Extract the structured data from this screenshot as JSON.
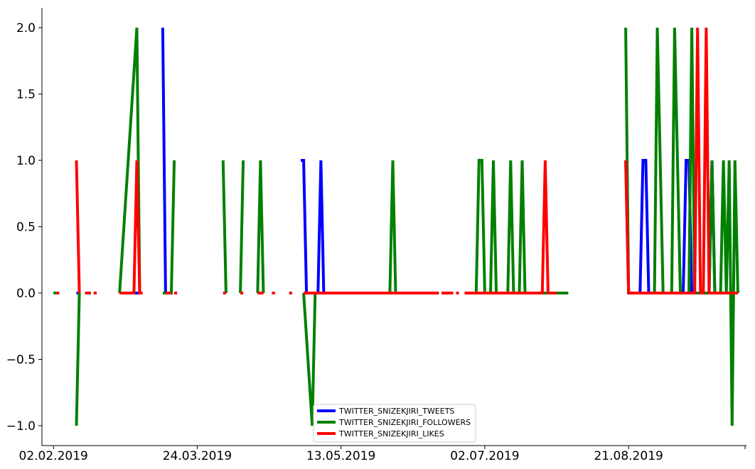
{
  "chart_data": {
    "type": "line",
    "title": "",
    "xlabel": "",
    "ylabel": "",
    "x_range": [
      "2019-01-29",
      "2019-10-01"
    ],
    "ylim": [
      -1.15,
      2.15
    ],
    "y_ticks": [
      -1.0,
      -0.5,
      0.0,
      0.5,
      1.0,
      1.5,
      2.0
    ],
    "y_tick_labels": [
      "−1.0",
      "−0.5",
      "0.0",
      "0.5",
      "1.0",
      "1.5",
      "2.0"
    ],
    "x_ticks": [
      "2019-02-02",
      "2019-03-24",
      "2019-05-13",
      "2019-07-02",
      "2019-08-21"
    ],
    "x_tick_labels": [
      "02.02.2019",
      "24.03.2019",
      "13.05.2019",
      "02.07.2019",
      "21.08.2019"
    ],
    "grid": false,
    "legend_position": "bottom-center",
    "series": [
      {
        "name": "TWITTER_SNIZEKJIRI_TWEETS",
        "color": "#0000ff",
        "segments": [
          [
            [
              "2019-02-10",
              0
            ],
            [
              "2019-02-11",
              0
            ]
          ],
          [
            [
              "2019-02-13",
              0
            ],
            [
              "2019-02-15",
              0
            ]
          ],
          [
            [
              "2019-02-16",
              0
            ],
            [
              "2019-02-17",
              0
            ]
          ],
          [
            [
              "2019-02-25",
              0
            ],
            [
              "2019-03-04",
              0
            ]
          ],
          [
            [
              "2019-03-12",
              2
            ],
            [
              "2019-03-13",
              0
            ],
            [
              "2019-03-15",
              0
            ]
          ],
          [
            [
              "2019-03-16",
              0
            ],
            [
              "2019-03-17",
              0
            ]
          ],
          [
            [
              "2019-04-02",
              0
            ],
            [
              "2019-04-03",
              0
            ]
          ],
          [
            [
              "2019-04-08",
              0
            ],
            [
              "2019-04-09",
              0
            ]
          ],
          [
            [
              "2019-04-14",
              0
            ],
            [
              "2019-04-15",
              0
            ]
          ],
          [
            [
              "2019-04-19",
              0
            ],
            [
              "2019-04-20",
              0
            ]
          ],
          [
            [
              "2019-04-25",
              0
            ],
            [
              "2019-04-26",
              0
            ]
          ],
          [
            [
              "2019-04-29",
              1
            ],
            [
              "2019-04-30",
              1
            ],
            [
              "2019-05-01",
              0
            ],
            [
              "2019-05-05",
              0
            ],
            [
              "2019-05-06",
              1
            ],
            [
              "2019-05-07",
              0
            ],
            [
              "2019-06-16",
              0
            ]
          ],
          [
            [
              "2019-06-17",
              0
            ],
            [
              "2019-06-21",
              0
            ]
          ],
          [
            [
              "2019-06-22",
              0
            ],
            [
              "2019-06-23",
              0
            ]
          ],
          [
            [
              "2019-06-25",
              0
            ],
            [
              "2019-07-31",
              0
            ]
          ],
          [
            [
              "2019-08-20",
              1
            ],
            [
              "2019-08-21",
              0
            ],
            [
              "2019-08-25",
              0
            ],
            [
              "2019-08-26",
              1
            ],
            [
              "2019-08-27",
              1
            ],
            [
              "2019-08-28",
              0
            ],
            [
              "2019-09-09",
              0
            ],
            [
              "2019-09-10",
              1
            ],
            [
              "2019-09-11",
              1
            ],
            [
              "2019-09-12",
              0
            ],
            [
              "2019-09-18",
              0
            ],
            [
              "2019-09-19",
              1
            ],
            [
              "2019-09-20",
              0
            ],
            [
              "2019-09-28",
              0
            ]
          ]
        ]
      },
      {
        "name": "TWITTER_SNIZEKJIRI_FOLLOWERS",
        "color": "#008000",
        "segments": [
          [
            [
              "2019-02-02",
              0
            ],
            [
              "2019-02-03",
              0
            ]
          ],
          [
            [
              "2019-02-10",
              -1
            ],
            [
              "2019-02-11",
              0
            ]
          ],
          [
            [
              "2019-02-13",
              0
            ],
            [
              "2019-02-15",
              0
            ]
          ],
          [
            [
              "2019-02-16",
              0
            ],
            [
              "2019-02-17",
              0
            ]
          ],
          [
            [
              "2019-02-25",
              0
            ],
            [
              "2019-03-03",
              2
            ],
            [
              "2019-03-04",
              0
            ]
          ],
          [
            [
              "2019-03-12",
              0
            ],
            [
              "2019-03-15",
              0
            ],
            [
              "2019-03-16",
              1
            ]
          ],
          [
            [
              "2019-04-02",
              1
            ],
            [
              "2019-04-03",
              0
            ]
          ],
          [
            [
              "2019-04-08",
              0
            ],
            [
              "2019-04-09",
              1
            ]
          ],
          [
            [
              "2019-04-14",
              0
            ],
            [
              "2019-04-15",
              1
            ],
            [
              "2019-04-16",
              0
            ]
          ],
          [
            [
              "2019-04-19",
              0
            ],
            [
              "2019-04-20",
              0
            ]
          ],
          [
            [
              "2019-04-25",
              0
            ],
            [
              "2019-04-26",
              0
            ]
          ],
          [
            [
              "2019-04-30",
              0
            ],
            [
              "2019-05-03",
              -1
            ],
            [
              "2019-05-04",
              0
            ],
            [
              "2019-05-30",
              0
            ],
            [
              "2019-05-31",
              1
            ],
            [
              "2019-06-01",
              0
            ],
            [
              "2019-06-16",
              0
            ]
          ],
          [
            [
              "2019-06-17",
              0
            ],
            [
              "2019-06-21",
              0
            ]
          ],
          [
            [
              "2019-06-22",
              0
            ],
            [
              "2019-06-23",
              0
            ]
          ],
          [
            [
              "2019-06-25",
              0
            ],
            [
              "2019-06-29",
              0
            ],
            [
              "2019-06-30",
              1
            ],
            [
              "2019-07-01",
              1
            ],
            [
              "2019-07-02",
              0
            ],
            [
              "2019-07-04",
              0
            ],
            [
              "2019-07-05",
              1
            ],
            [
              "2019-07-06",
              0
            ],
            [
              "2019-07-10",
              0
            ],
            [
              "2019-07-11",
              1
            ],
            [
              "2019-07-12",
              0
            ],
            [
              "2019-07-14",
              0
            ],
            [
              "2019-07-15",
              1
            ],
            [
              "2019-07-16",
              0
            ],
            [
              "2019-07-31",
              0
            ]
          ],
          [
            [
              "2019-08-20",
              2
            ],
            [
              "2019-08-21",
              0
            ],
            [
              "2019-08-30",
              0
            ],
            [
              "2019-08-31",
              2
            ],
            [
              "2019-09-02",
              0
            ],
            [
              "2019-09-05",
              0
            ],
            [
              "2019-09-06",
              2
            ],
            [
              "2019-09-08",
              0
            ],
            [
              "2019-09-11",
              0
            ],
            [
              "2019-09-12",
              2
            ],
            [
              "2019-09-13",
              0
            ],
            [
              "2019-09-18",
              0
            ],
            [
              "2019-09-19",
              1
            ],
            [
              "2019-09-20",
              0
            ],
            [
              "2019-09-22",
              0
            ],
            [
              "2019-09-23",
              1
            ],
            [
              "2019-09-24",
              0
            ],
            [
              "2019-09-25",
              1
            ],
            [
              "2019-09-26",
              -1
            ],
            [
              "2019-09-27",
              1
            ],
            [
              "2019-09-28",
              0
            ]
          ]
        ]
      },
      {
        "name": "TWITTER_SNIZEKJIRI_LIKES",
        "color": "#ff0000",
        "segments": [
          [
            [
              "2019-02-03",
              0
            ],
            [
              "2019-02-04",
              0
            ]
          ],
          [
            [
              "2019-02-10",
              1
            ],
            [
              "2019-02-11",
              0
            ]
          ],
          [
            [
              "2019-02-13",
              0
            ],
            [
              "2019-02-15",
              0
            ]
          ],
          [
            [
              "2019-02-16",
              0
            ],
            [
              "2019-02-17",
              0
            ]
          ],
          [
            [
              "2019-02-25",
              0
            ],
            [
              "2019-03-02",
              0
            ],
            [
              "2019-03-03",
              1
            ],
            [
              "2019-03-04",
              0
            ],
            [
              "2019-03-05",
              0
            ]
          ],
          [
            [
              "2019-03-13",
              0
            ],
            [
              "2019-03-15",
              0
            ]
          ],
          [
            [
              "2019-03-16",
              0
            ],
            [
              "2019-03-17",
              0
            ]
          ],
          [
            [
              "2019-04-02",
              0
            ],
            [
              "2019-04-03",
              0
            ]
          ],
          [
            [
              "2019-04-08",
              0
            ],
            [
              "2019-04-09",
              0
            ]
          ],
          [
            [
              "2019-04-14",
              0
            ],
            [
              "2019-04-16",
              0
            ]
          ],
          [
            [
              "2019-04-19",
              0
            ],
            [
              "2019-04-20",
              0
            ]
          ],
          [
            [
              "2019-04-25",
              0
            ],
            [
              "2019-04-26",
              0
            ]
          ],
          [
            [
              "2019-04-30",
              0
            ],
            [
              "2019-06-16",
              0
            ]
          ],
          [
            [
              "2019-06-17",
              0
            ],
            [
              "2019-06-21",
              0
            ]
          ],
          [
            [
              "2019-06-22",
              0
            ],
            [
              "2019-06-23",
              0
            ]
          ],
          [
            [
              "2019-06-25",
              0
            ],
            [
              "2019-07-22",
              0
            ],
            [
              "2019-07-23",
              1
            ],
            [
              "2019-07-24",
              0
            ],
            [
              "2019-07-27",
              0
            ]
          ],
          [
            [
              "2019-08-20",
              1
            ],
            [
              "2019-08-21",
              0
            ],
            [
              "2019-09-13",
              0
            ],
            [
              "2019-09-14",
              2
            ],
            [
              "2019-09-15",
              0
            ],
            [
              "2019-09-16",
              0
            ],
            [
              "2019-09-17",
              2
            ],
            [
              "2019-09-18",
              0
            ],
            [
              "2019-09-28",
              0
            ]
          ]
        ]
      }
    ]
  }
}
